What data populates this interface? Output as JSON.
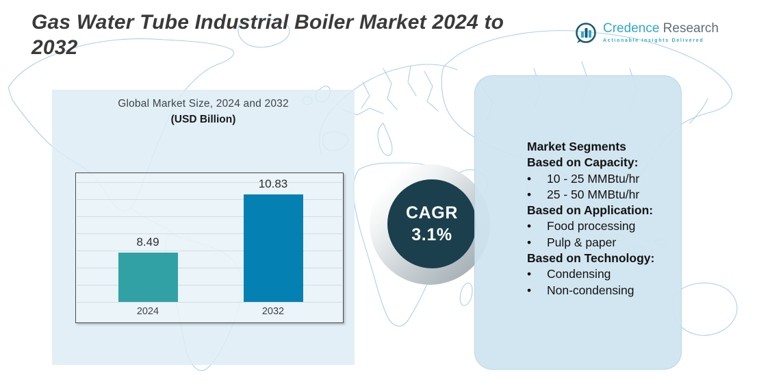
{
  "header": {
    "title": "Gas Water Tube Industrial Boiler Market 2024 to 2032",
    "title_lines": [
      "Gas Water Tube Industrial Boiler Market 2024 to",
      "2032"
    ],
    "logo": {
      "word1": "Credence",
      "word2": "Research",
      "tagline": "Actionable Insights Delivered",
      "icon": "bar-chart-in-circle",
      "colors": {
        "accent": "#2fa9cb",
        "dark": "#1a5a74",
        "slate": "#5e6e7c"
      }
    }
  },
  "chart_data": {
    "type": "bar",
    "title": "Global Market Size, 2024 and 2032",
    "subtitle": "(USD Billion)",
    "unit": "USD Billion",
    "categories": [
      "2024",
      "2032"
    ],
    "values": [
      8.49,
      10.83
    ],
    "value_labels": [
      "8.49",
      "10.83"
    ],
    "bar_colors": [
      "#31a1a6",
      "#0580b2"
    ],
    "ylim": [
      6.5,
      12.5
    ],
    "grid": true,
    "legend": "none"
  },
  "cagr": {
    "label": "CAGR",
    "value": "3.1%",
    "circle_color": "#1b3f4c"
  },
  "segments": {
    "heading": "Market Segments",
    "groups": [
      {
        "label": "Based on Capacity:",
        "items": [
          "10 - 25 MMBtu/hr",
          "25 - 50 MMBtu/hr"
        ]
      },
      {
        "label": "Based on Application:",
        "items": [
          "Food processing",
          "Pulp & paper"
        ]
      },
      {
        "label": "Based on Technology:",
        "items": [
          "Condensing",
          "Non-condensing"
        ]
      }
    ]
  },
  "colors": {
    "title_text": "#3a3a3a",
    "left_panel": "#ddecf5",
    "right_panel": "#cee4f0",
    "map_outline": "#a9cde2",
    "cagr_circle": "#1b3f4c",
    "bar_2024": "#31a1a6",
    "bar_2032": "#0580b2"
  }
}
